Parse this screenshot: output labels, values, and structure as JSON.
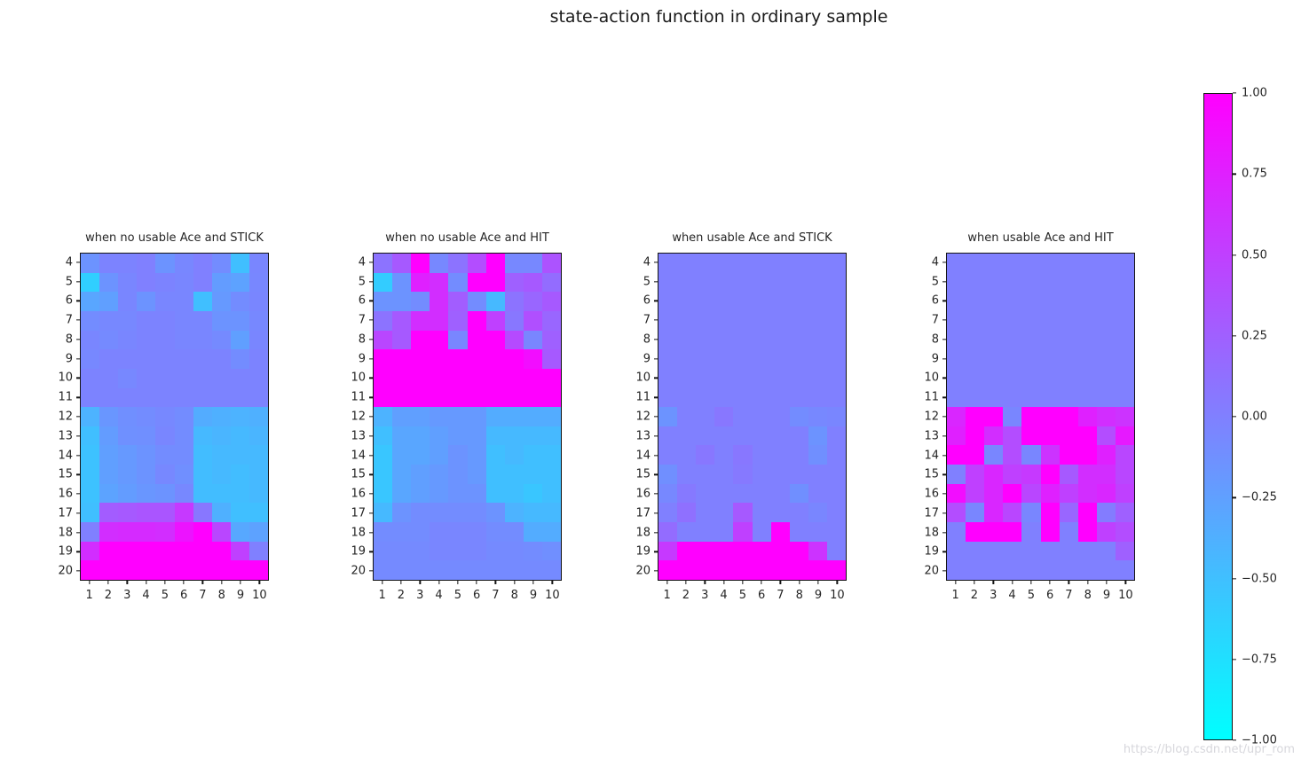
{
  "title": "state-action function in ordinary sample",
  "watermark": "https://blog.csdn.net/upr_rom",
  "colors": {
    "colormap_min_cyan": "#00ffff",
    "colormap_zero": "#8080ff",
    "colormap_max_magenta": "#ff00ff",
    "axis": "#141414",
    "text": "#262626",
    "background": "#ffffff"
  },
  "colorbar": {
    "vmin": -1.0,
    "vmax": 1.0,
    "ticks": [
      "1.00",
      "0.75",
      "0.50",
      "0.25",
      "0.00",
      "−0.25",
      "−0.50",
      "−0.75",
      "−1.00"
    ]
  },
  "chart_data": [
    {
      "type": "heatmap",
      "title": "when no usable Ace and STICK",
      "colormap": "cool",
      "vmin": -1.0,
      "vmax": 1.0,
      "rows": [
        "4",
        "5",
        "6",
        "7",
        "8",
        "9",
        "10",
        "11",
        "12",
        "13",
        "14",
        "15",
        "16",
        "17",
        "18",
        "19",
        "20"
      ],
      "cols": [
        "1",
        "2",
        "3",
        "4",
        "5",
        "6",
        "7",
        "8",
        "9",
        "10"
      ],
      "values": [
        [
          -0.15,
          -0.03,
          -0.03,
          0.0,
          -0.15,
          -0.06,
          0.0,
          -0.1,
          -0.5,
          -0.05
        ],
        [
          -0.62,
          -0.15,
          -0.05,
          0.0,
          -0.03,
          -0.05,
          0.0,
          -0.22,
          -0.27,
          -0.06
        ],
        [
          -0.3,
          -0.25,
          -0.05,
          -0.15,
          -0.05,
          -0.05,
          -0.5,
          -0.2,
          -0.1,
          -0.05
        ],
        [
          -0.1,
          -0.07,
          -0.07,
          -0.03,
          -0.03,
          -0.05,
          -0.05,
          -0.15,
          -0.15,
          -0.07
        ],
        [
          -0.05,
          -0.08,
          -0.05,
          -0.03,
          -0.03,
          -0.05,
          -0.05,
          -0.08,
          -0.25,
          -0.05
        ],
        [
          -0.07,
          -0.03,
          -0.03,
          -0.03,
          -0.03,
          -0.03,
          -0.03,
          -0.03,
          -0.1,
          -0.03
        ],
        [
          -0.03,
          -0.03,
          -0.07,
          -0.03,
          -0.03,
          -0.03,
          -0.03,
          -0.03,
          -0.03,
          -0.03
        ],
        [
          -0.03,
          -0.03,
          -0.03,
          -0.03,
          -0.03,
          -0.03,
          -0.03,
          -0.03,
          -0.03,
          -0.03
        ],
        [
          -0.4,
          -0.18,
          -0.12,
          -0.1,
          -0.07,
          -0.1,
          -0.35,
          -0.38,
          -0.4,
          -0.38
        ],
        [
          -0.5,
          -0.22,
          -0.13,
          -0.12,
          -0.05,
          -0.1,
          -0.45,
          -0.42,
          -0.45,
          -0.42
        ],
        [
          -0.52,
          -0.25,
          -0.2,
          -0.15,
          -0.1,
          -0.1,
          -0.48,
          -0.45,
          -0.45,
          -0.45
        ],
        [
          -0.52,
          -0.25,
          -0.2,
          -0.15,
          -0.07,
          -0.12,
          -0.48,
          -0.45,
          -0.48,
          -0.45
        ],
        [
          -0.52,
          -0.28,
          -0.22,
          -0.18,
          -0.15,
          -0.07,
          -0.48,
          -0.48,
          -0.48,
          -0.45
        ],
        [
          -0.5,
          0.28,
          0.3,
          0.33,
          0.33,
          0.55,
          0.07,
          -0.38,
          -0.5,
          -0.5
        ],
        [
          0.0,
          0.65,
          0.67,
          0.67,
          0.65,
          0.85,
          1.0,
          0.45,
          -0.32,
          -0.27
        ],
        [
          0.65,
          1.0,
          1.0,
          1.0,
          1.0,
          1.0,
          1.0,
          1.0,
          0.5,
          0.0
        ],
        [
          1.0,
          1.0,
          1.0,
          1.0,
          1.0,
          1.0,
          1.0,
          1.0,
          1.0,
          1.0
        ]
      ]
    },
    {
      "type": "heatmap",
      "title": "when no usable Ace and HIT",
      "colormap": "cool",
      "vmin": -1.0,
      "vmax": 1.0,
      "rows": [
        "4",
        "5",
        "6",
        "7",
        "8",
        "9",
        "10",
        "11",
        "12",
        "13",
        "14",
        "15",
        "16",
        "17",
        "18",
        "19",
        "20"
      ],
      "cols": [
        "1",
        "2",
        "3",
        "4",
        "5",
        "6",
        "7",
        "8",
        "9",
        "10"
      ],
      "values": [
        [
          0.1,
          0.3,
          1.0,
          -0.07,
          0.1,
          0.4,
          1.0,
          -0.07,
          -0.07,
          0.35
        ],
        [
          -0.6,
          -0.15,
          0.75,
          0.65,
          -0.1,
          1.0,
          1.0,
          0.25,
          0.3,
          0.15
        ],
        [
          -0.15,
          -0.15,
          -0.1,
          0.65,
          0.27,
          -0.1,
          -0.45,
          0.1,
          0.2,
          0.3
        ],
        [
          0.1,
          0.3,
          0.65,
          0.65,
          0.25,
          1.0,
          0.5,
          0.07,
          0.38,
          0.2
        ],
        [
          0.45,
          0.3,
          1.0,
          1.0,
          -0.05,
          1.0,
          1.0,
          0.42,
          -0.05,
          0.25
        ],
        [
          1.0,
          1.0,
          1.0,
          1.0,
          1.0,
          1.0,
          1.0,
          1.0,
          0.9,
          0.3
        ],
        [
          1.0,
          1.0,
          1.0,
          1.0,
          1.0,
          1.0,
          1.0,
          1.0,
          1.0,
          1.0
        ],
        [
          1.0,
          1.0,
          1.0,
          1.0,
          1.0,
          1.0,
          1.0,
          1.0,
          1.0,
          1.0
        ],
        [
          -0.4,
          -0.25,
          -0.25,
          -0.2,
          -0.2,
          -0.2,
          -0.35,
          -0.35,
          -0.35,
          -0.35
        ],
        [
          -0.5,
          -0.3,
          -0.3,
          -0.25,
          -0.2,
          -0.2,
          -0.45,
          -0.45,
          -0.45,
          -0.45
        ],
        [
          -0.55,
          -0.3,
          -0.3,
          -0.25,
          -0.15,
          -0.2,
          -0.5,
          -0.45,
          -0.5,
          -0.5
        ],
        [
          -0.55,
          -0.3,
          -0.25,
          -0.2,
          -0.15,
          -0.2,
          -0.5,
          -0.5,
          -0.5,
          -0.5
        ],
        [
          -0.55,
          -0.3,
          -0.25,
          -0.2,
          -0.15,
          -0.15,
          -0.5,
          -0.5,
          -0.55,
          -0.5
        ],
        [
          -0.45,
          -0.15,
          -0.1,
          -0.1,
          -0.1,
          -0.1,
          -0.15,
          -0.4,
          -0.45,
          -0.45
        ],
        [
          -0.1,
          -0.1,
          -0.1,
          -0.05,
          -0.05,
          -0.05,
          -0.1,
          -0.1,
          -0.35,
          -0.35
        ],
        [
          -0.08,
          -0.08,
          -0.08,
          -0.05,
          -0.05,
          -0.05,
          -0.08,
          -0.08,
          -0.1,
          -0.12
        ],
        [
          -0.08,
          -0.08,
          -0.08,
          -0.08,
          -0.08,
          -0.08,
          -0.08,
          -0.08,
          -0.08,
          -0.08
        ]
      ]
    },
    {
      "type": "heatmap",
      "title": "when usable Ace and STICK",
      "colormap": "cool",
      "vmin": -1.0,
      "vmax": 1.0,
      "rows": [
        "4",
        "5",
        "6",
        "7",
        "8",
        "9",
        "10",
        "11",
        "12",
        "13",
        "14",
        "15",
        "16",
        "17",
        "18",
        "19",
        "20"
      ],
      "cols": [
        "1",
        "2",
        "3",
        "4",
        "5",
        "6",
        "7",
        "8",
        "9",
        "10"
      ],
      "values": [
        [
          0.0,
          0.0,
          0.0,
          0.0,
          0.0,
          0.0,
          0.0,
          0.0,
          0.0,
          0.0
        ],
        [
          0.0,
          0.0,
          0.0,
          0.0,
          0.0,
          0.0,
          0.0,
          0.0,
          0.0,
          0.0
        ],
        [
          0.0,
          0.0,
          0.0,
          0.0,
          0.0,
          0.0,
          0.0,
          0.0,
          0.0,
          0.0
        ],
        [
          0.0,
          0.0,
          0.0,
          0.0,
          0.0,
          0.0,
          0.0,
          0.0,
          0.0,
          0.0
        ],
        [
          0.0,
          0.0,
          0.0,
          0.0,
          0.0,
          0.0,
          0.0,
          0.0,
          0.0,
          0.0
        ],
        [
          0.0,
          0.0,
          0.0,
          0.0,
          0.0,
          0.0,
          0.0,
          0.0,
          0.0,
          0.0
        ],
        [
          0.0,
          0.0,
          0.0,
          0.0,
          0.0,
          0.0,
          0.0,
          0.0,
          0.0,
          0.0
        ],
        [
          0.0,
          0.0,
          0.0,
          0.0,
          0.0,
          0.0,
          0.0,
          0.0,
          0.0,
          0.0
        ],
        [
          -0.15,
          0.0,
          0.0,
          0.07,
          0.0,
          0.0,
          0.0,
          -0.1,
          -0.07,
          -0.05
        ],
        [
          0.0,
          0.0,
          0.0,
          0.0,
          0.0,
          0.0,
          0.0,
          0.0,
          -0.15,
          0.0
        ],
        [
          0.0,
          0.0,
          0.07,
          0.0,
          0.07,
          0.0,
          0.0,
          0.0,
          -0.12,
          0.0
        ],
        [
          -0.12,
          0.0,
          0.0,
          0.0,
          0.05,
          0.0,
          0.0,
          0.0,
          0.0,
          0.0
        ],
        [
          -0.07,
          0.05,
          0.0,
          0.0,
          0.0,
          0.0,
          0.0,
          -0.12,
          0.0,
          0.0
        ],
        [
          0.0,
          0.12,
          0.0,
          0.0,
          0.3,
          0.0,
          0.0,
          0.0,
          -0.05,
          0.0
        ],
        [
          0.15,
          0.0,
          0.0,
          0.0,
          0.5,
          0.0,
          1.0,
          0.0,
          0.0,
          0.0
        ],
        [
          0.55,
          1.0,
          1.0,
          1.0,
          1.0,
          1.0,
          1.0,
          1.0,
          0.6,
          0.0
        ],
        [
          1.0,
          1.0,
          1.0,
          1.0,
          1.0,
          1.0,
          1.0,
          1.0,
          1.0,
          1.0
        ]
      ]
    },
    {
      "type": "heatmap",
      "title": "when usable Ace and HIT",
      "colormap": "cool",
      "vmin": -1.0,
      "vmax": 1.0,
      "rows": [
        "4",
        "5",
        "6",
        "7",
        "8",
        "9",
        "10",
        "11",
        "12",
        "13",
        "14",
        "15",
        "16",
        "17",
        "18",
        "19",
        "20"
      ],
      "cols": [
        "1",
        "2",
        "3",
        "4",
        "5",
        "6",
        "7",
        "8",
        "9",
        "10"
      ],
      "values": [
        [
          0.0,
          0.0,
          0.0,
          0.0,
          0.0,
          0.0,
          0.0,
          0.0,
          0.0,
          0.0
        ],
        [
          0.0,
          0.0,
          0.0,
          0.0,
          0.0,
          0.0,
          0.0,
          0.0,
          0.0,
          0.0
        ],
        [
          0.0,
          0.0,
          0.0,
          0.0,
          0.0,
          0.0,
          0.0,
          0.0,
          0.0,
          0.0
        ],
        [
          0.0,
          0.0,
          0.0,
          0.0,
          0.0,
          0.0,
          0.0,
          0.0,
          0.0,
          0.0
        ],
        [
          0.0,
          0.0,
          0.0,
          0.0,
          0.0,
          0.0,
          0.0,
          0.0,
          0.0,
          0.0
        ],
        [
          0.0,
          0.0,
          0.0,
          0.0,
          0.0,
          0.0,
          0.0,
          0.0,
          0.0,
          0.0
        ],
        [
          0.0,
          0.0,
          0.0,
          0.0,
          0.0,
          0.0,
          0.0,
          0.0,
          0.0,
          0.0
        ],
        [
          0.0,
          0.0,
          0.0,
          0.0,
          0.0,
          0.0,
          0.0,
          0.0,
          0.0,
          0.0
        ],
        [
          0.7,
          1.0,
          1.0,
          -0.05,
          1.0,
          1.0,
          1.0,
          0.75,
          0.65,
          0.6
        ],
        [
          0.75,
          1.0,
          0.65,
          0.4,
          1.0,
          1.0,
          1.0,
          1.0,
          0.4,
          0.8
        ],
        [
          1.0,
          1.0,
          -0.05,
          0.4,
          -0.05,
          0.6,
          1.0,
          1.0,
          0.75,
          0.45
        ],
        [
          0.0,
          0.5,
          0.7,
          0.5,
          0.55,
          1.0,
          0.3,
          0.65,
          0.65,
          0.45
        ],
        [
          0.9,
          0.5,
          0.7,
          1.0,
          0.45,
          0.75,
          0.5,
          0.65,
          0.7,
          0.5
        ],
        [
          0.4,
          -0.05,
          0.7,
          0.45,
          -0.05,
          1.0,
          0.2,
          1.0,
          0.03,
          0.25
        ],
        [
          0.0,
          1.0,
          1.0,
          1.0,
          0.0,
          1.0,
          0.0,
          1.0,
          0.5,
          0.4
        ],
        [
          0.0,
          0.0,
          0.0,
          0.0,
          0.0,
          0.0,
          0.0,
          0.0,
          0.0,
          0.25
        ],
        [
          0.0,
          0.0,
          0.0,
          0.0,
          0.0,
          0.0,
          0.0,
          0.0,
          0.0,
          0.0
        ]
      ]
    }
  ]
}
